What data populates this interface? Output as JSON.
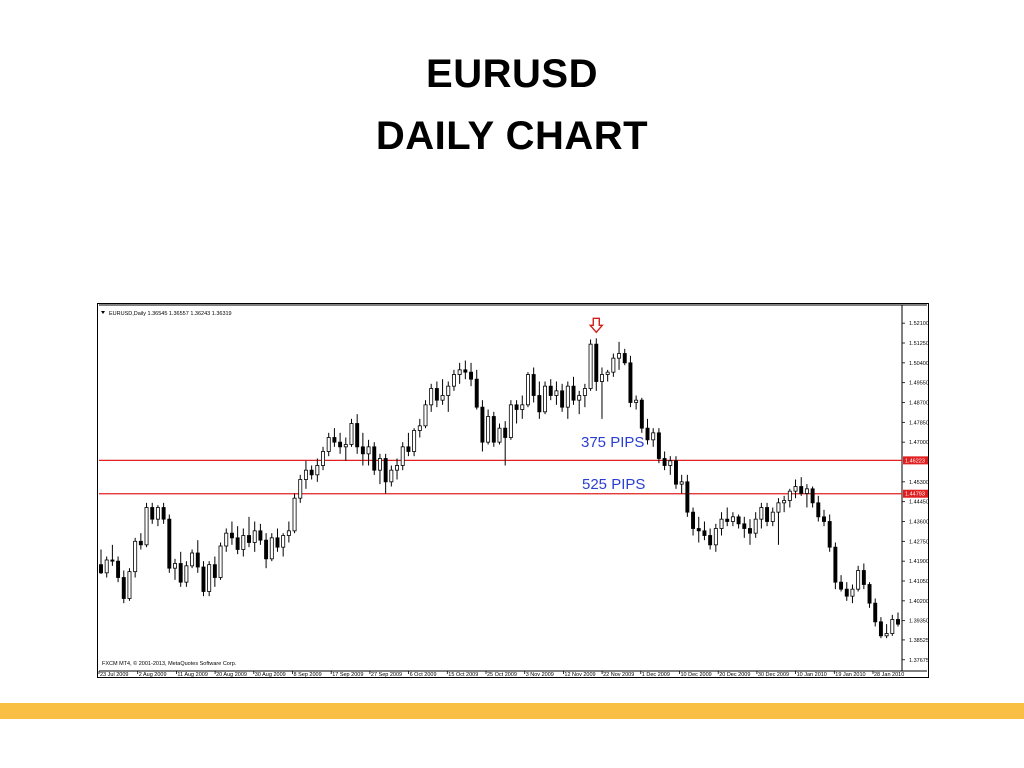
{
  "slide": {
    "title_line1": "EURUSD",
    "title_line2": "DAILY CHART",
    "bar_color": "#f9bf45"
  },
  "chart_data": {
    "type": "candlestick",
    "header": "EURUSD,Daily  1.36545 1.36557 1.36243 1.36319",
    "footer": "FXCM MT4, © 2001-2013, MetaQuotes Software Corp.",
    "y_ticks": [
      1.521,
      1.5125,
      1.504,
      1.4955,
      1.487,
      1.4785,
      1.47,
      1.453,
      1.4445,
      1.436,
      1.4275,
      1.419,
      1.4105,
      1.402,
      1.3935,
      1.38525,
      1.37675
    ],
    "y_tick_labels": [
      "1.52100",
      "1.51250",
      "1.50400",
      "1.49550",
      "1.48700",
      "1.47850",
      "1.47000",
      "1.45300",
      "1.44450",
      "1.43600",
      "1.42750",
      "1.41900",
      "1.41050",
      "1.40200",
      "1.39350",
      "1.38525",
      "1.37675"
    ],
    "ylim": [
      1.3745,
      1.5275
    ],
    "x_labels": [
      "23 Jul 2009",
      "2 Aug 2009",
      "11 Aug 2009",
      "20 Aug 2009",
      "30 Aug 2009",
      "8 Sep 2009",
      "17 Sep 2009",
      "27 Sep 2009",
      "6 Oct 2009",
      "15 Oct 2009",
      "25 Oct 2009",
      "3 Nov 2009",
      "12 Nov 2009",
      "22 Nov 2009",
      "1 Dec 2009",
      "10 Dec 2009",
      "20 Dec 2009",
      "30 Dec 2009",
      "10 Jan 2010",
      "19 Jan 2010",
      "28 Jan 2010"
    ],
    "levels": [
      {
        "value": 1.4622,
        "label": "1.46223",
        "color": "#e02020"
      },
      {
        "value": 1.4479,
        "label": "1.44793",
        "color": "#e02020"
      }
    ],
    "annotations": [
      {
        "text": "375 PIPS",
        "color": "#2a3fd0"
      },
      {
        "text": "525 PIPS",
        "color": "#2a3fd0"
      }
    ],
    "marker": {
      "type": "down-arrow",
      "color": "#d0201b"
    },
    "candles": [
      {
        "o": 1.4175,
        "h": 1.424,
        "l": 1.4135,
        "c": 1.414
      },
      {
        "o": 1.414,
        "h": 1.421,
        "l": 1.412,
        "c": 1.4195
      },
      {
        "o": 1.4195,
        "h": 1.426,
        "l": 1.417,
        "c": 1.419
      },
      {
        "o": 1.419,
        "h": 1.421,
        "l": 1.41,
        "c": 1.412
      },
      {
        "o": 1.412,
        "h": 1.415,
        "l": 1.401,
        "c": 1.403
      },
      {
        "o": 1.403,
        "h": 1.416,
        "l": 1.402,
        "c": 1.4145
      },
      {
        "o": 1.4145,
        "h": 1.429,
        "l": 1.412,
        "c": 1.4275
      },
      {
        "o": 1.4275,
        "h": 1.431,
        "l": 1.424,
        "c": 1.426
      },
      {
        "o": 1.426,
        "h": 1.444,
        "l": 1.425,
        "c": 1.442
      },
      {
        "o": 1.442,
        "h": 1.444,
        "l": 1.435,
        "c": 1.437
      },
      {
        "o": 1.437,
        "h": 1.443,
        "l": 1.434,
        "c": 1.442
      },
      {
        "o": 1.442,
        "h": 1.444,
        "l": 1.435,
        "c": 1.437
      },
      {
        "o": 1.437,
        "h": 1.439,
        "l": 1.414,
        "c": 1.416
      },
      {
        "o": 1.416,
        "h": 1.42,
        "l": 1.411,
        "c": 1.418
      },
      {
        "o": 1.418,
        "h": 1.423,
        "l": 1.408,
        "c": 1.41
      },
      {
        "o": 1.41,
        "h": 1.419,
        "l": 1.408,
        "c": 1.417
      },
      {
        "o": 1.417,
        "h": 1.424,
        "l": 1.416,
        "c": 1.4225
      },
      {
        "o": 1.4225,
        "h": 1.428,
        "l": 1.414,
        "c": 1.4165
      },
      {
        "o": 1.4165,
        "h": 1.419,
        "l": 1.404,
        "c": 1.406
      },
      {
        "o": 1.406,
        "h": 1.419,
        "l": 1.404,
        "c": 1.4175
      },
      {
        "o": 1.4175,
        "h": 1.421,
        "l": 1.408,
        "c": 1.412
      },
      {
        "o": 1.412,
        "h": 1.427,
        "l": 1.411,
        "c": 1.4255
      },
      {
        "o": 1.4255,
        "h": 1.433,
        "l": 1.423,
        "c": 1.431
      },
      {
        "o": 1.431,
        "h": 1.436,
        "l": 1.426,
        "c": 1.429
      },
      {
        "o": 1.429,
        "h": 1.434,
        "l": 1.422,
        "c": 1.424
      },
      {
        "o": 1.424,
        "h": 1.433,
        "l": 1.421,
        "c": 1.43
      },
      {
        "o": 1.43,
        "h": 1.438,
        "l": 1.425,
        "c": 1.427
      },
      {
        "o": 1.427,
        "h": 1.436,
        "l": 1.423,
        "c": 1.432
      },
      {
        "o": 1.432,
        "h": 1.435,
        "l": 1.426,
        "c": 1.428
      },
      {
        "o": 1.428,
        "h": 1.431,
        "l": 1.416,
        "c": 1.42
      },
      {
        "o": 1.42,
        "h": 1.431,
        "l": 1.419,
        "c": 1.429
      },
      {
        "o": 1.429,
        "h": 1.433,
        "l": 1.423,
        "c": 1.425
      },
      {
        "o": 1.425,
        "h": 1.431,
        "l": 1.421,
        "c": 1.43
      },
      {
        "o": 1.43,
        "h": 1.436,
        "l": 1.427,
        "c": 1.432
      },
      {
        "o": 1.432,
        "h": 1.448,
        "l": 1.431,
        "c": 1.446
      },
      {
        "o": 1.446,
        "h": 1.456,
        "l": 1.444,
        "c": 1.454
      },
      {
        "o": 1.454,
        "h": 1.462,
        "l": 1.45,
        "c": 1.458
      },
      {
        "o": 1.458,
        "h": 1.46,
        "l": 1.454,
        "c": 1.456
      },
      {
        "o": 1.456,
        "h": 1.463,
        "l": 1.453,
        "c": 1.46
      },
      {
        "o": 1.46,
        "h": 1.468,
        "l": 1.458,
        "c": 1.466
      },
      {
        "o": 1.466,
        "h": 1.474,
        "l": 1.464,
        "c": 1.472
      },
      {
        "o": 1.472,
        "h": 1.476,
        "l": 1.468,
        "c": 1.47
      },
      {
        "o": 1.47,
        "h": 1.474,
        "l": 1.465,
        "c": 1.468
      },
      {
        "o": 1.468,
        "h": 1.472,
        "l": 1.462,
        "c": 1.469
      },
      {
        "o": 1.469,
        "h": 1.48,
        "l": 1.468,
        "c": 1.478
      },
      {
        "o": 1.478,
        "h": 1.482,
        "l": 1.465,
        "c": 1.468
      },
      {
        "o": 1.468,
        "h": 1.474,
        "l": 1.46,
        "c": 1.465
      },
      {
        "o": 1.465,
        "h": 1.471,
        "l": 1.46,
        "c": 1.468
      },
      {
        "o": 1.468,
        "h": 1.47,
        "l": 1.456,
        "c": 1.458
      },
      {
        "o": 1.458,
        "h": 1.465,
        "l": 1.452,
        "c": 1.463
      },
      {
        "o": 1.463,
        "h": 1.465,
        "l": 1.448,
        "c": 1.453
      },
      {
        "o": 1.453,
        "h": 1.46,
        "l": 1.451,
        "c": 1.458
      },
      {
        "o": 1.458,
        "h": 1.463,
        "l": 1.454,
        "c": 1.46
      },
      {
        "o": 1.46,
        "h": 1.47,
        "l": 1.458,
        "c": 1.468
      },
      {
        "o": 1.468,
        "h": 1.474,
        "l": 1.464,
        "c": 1.466
      },
      {
        "o": 1.466,
        "h": 1.476,
        "l": 1.464,
        "c": 1.475
      },
      {
        "o": 1.475,
        "h": 1.48,
        "l": 1.472,
        "c": 1.477
      },
      {
        "o": 1.477,
        "h": 1.488,
        "l": 1.476,
        "c": 1.486
      },
      {
        "o": 1.486,
        "h": 1.495,
        "l": 1.483,
        "c": 1.493
      },
      {
        "o": 1.493,
        "h": 1.496,
        "l": 1.485,
        "c": 1.488
      },
      {
        "o": 1.488,
        "h": 1.497,
        "l": 1.486,
        "c": 1.49
      },
      {
        "o": 1.49,
        "h": 1.496,
        "l": 1.483,
        "c": 1.494
      },
      {
        "o": 1.494,
        "h": 1.501,
        "l": 1.492,
        "c": 1.499
      },
      {
        "o": 1.499,
        "h": 1.504,
        "l": 1.495,
        "c": 1.501
      },
      {
        "o": 1.501,
        "h": 1.505,
        "l": 1.497,
        "c": 1.5
      },
      {
        "o": 1.5,
        "h": 1.504,
        "l": 1.494,
        "c": 1.497
      },
      {
        "o": 1.497,
        "h": 1.501,
        "l": 1.484,
        "c": 1.485
      },
      {
        "o": 1.485,
        "h": 1.488,
        "l": 1.466,
        "c": 1.47
      },
      {
        "o": 1.47,
        "h": 1.484,
        "l": 1.469,
        "c": 1.481
      },
      {
        "o": 1.481,
        "h": 1.483,
        "l": 1.468,
        "c": 1.47
      },
      {
        "o": 1.47,
        "h": 1.478,
        "l": 1.469,
        "c": 1.476
      },
      {
        "o": 1.476,
        "h": 1.479,
        "l": 1.46,
        "c": 1.472
      },
      {
        "o": 1.472,
        "h": 1.488,
        "l": 1.471,
        "c": 1.486
      },
      {
        "o": 1.486,
        "h": 1.488,
        "l": 1.478,
        "c": 1.484
      },
      {
        "o": 1.484,
        "h": 1.49,
        "l": 1.48,
        "c": 1.486
      },
      {
        "o": 1.486,
        "h": 1.5,
        "l": 1.485,
        "c": 1.499
      },
      {
        "o": 1.499,
        "h": 1.502,
        "l": 1.487,
        "c": 1.49
      },
      {
        "o": 1.49,
        "h": 1.496,
        "l": 1.48,
        "c": 1.483
      },
      {
        "o": 1.483,
        "h": 1.496,
        "l": 1.482,
        "c": 1.494
      },
      {
        "o": 1.494,
        "h": 1.497,
        "l": 1.488,
        "c": 1.49
      },
      {
        "o": 1.49,
        "h": 1.496,
        "l": 1.486,
        "c": 1.492
      },
      {
        "o": 1.492,
        "h": 1.495,
        "l": 1.483,
        "c": 1.485
      },
      {
        "o": 1.485,
        "h": 1.496,
        "l": 1.48,
        "c": 1.494
      },
      {
        "o": 1.494,
        "h": 1.498,
        "l": 1.486,
        "c": 1.488
      },
      {
        "o": 1.488,
        "h": 1.492,
        "l": 1.482,
        "c": 1.49
      },
      {
        "o": 1.49,
        "h": 1.495,
        "l": 1.485,
        "c": 1.493
      },
      {
        "o": 1.493,
        "h": 1.514,
        "l": 1.492,
        "c": 1.512
      },
      {
        "o": 1.512,
        "h": 1.5145,
        "l": 1.492,
        "c": 1.496
      },
      {
        "o": 1.496,
        "h": 1.502,
        "l": 1.48,
        "c": 1.499
      },
      {
        "o": 1.499,
        "h": 1.501,
        "l": 1.496,
        "c": 1.5
      },
      {
        "o": 1.5,
        "h": 1.508,
        "l": 1.498,
        "c": 1.506
      },
      {
        "o": 1.506,
        "h": 1.513,
        "l": 1.501,
        "c": 1.508
      },
      {
        "o": 1.508,
        "h": 1.51,
        "l": 1.503,
        "c": 1.504
      },
      {
        "o": 1.504,
        "h": 1.507,
        "l": 1.485,
        "c": 1.487
      },
      {
        "o": 1.487,
        "h": 1.49,
        "l": 1.484,
        "c": 1.488
      },
      {
        "o": 1.488,
        "h": 1.489,
        "l": 1.474,
        "c": 1.476
      },
      {
        "o": 1.476,
        "h": 1.48,
        "l": 1.469,
        "c": 1.471
      },
      {
        "o": 1.471,
        "h": 1.476,
        "l": 1.468,
        "c": 1.474
      },
      {
        "o": 1.474,
        "h": 1.476,
        "l": 1.461,
        "c": 1.463
      },
      {
        "o": 1.463,
        "h": 1.466,
        "l": 1.458,
        "c": 1.46
      },
      {
        "o": 1.46,
        "h": 1.464,
        "l": 1.456,
        "c": 1.462
      },
      {
        "o": 1.462,
        "h": 1.464,
        "l": 1.45,
        "c": 1.452
      },
      {
        "o": 1.452,
        "h": 1.456,
        "l": 1.448,
        "c": 1.453
      },
      {
        "o": 1.453,
        "h": 1.456,
        "l": 1.438,
        "c": 1.44
      },
      {
        "o": 1.44,
        "h": 1.442,
        "l": 1.43,
        "c": 1.433
      },
      {
        "o": 1.433,
        "h": 1.438,
        "l": 1.427,
        "c": 1.432
      },
      {
        "o": 1.432,
        "h": 1.436,
        "l": 1.428,
        "c": 1.43
      },
      {
        "o": 1.43,
        "h": 1.433,
        "l": 1.424,
        "c": 1.426
      },
      {
        "o": 1.426,
        "h": 1.435,
        "l": 1.423,
        "c": 1.433
      },
      {
        "o": 1.433,
        "h": 1.44,
        "l": 1.43,
        "c": 1.437
      },
      {
        "o": 1.437,
        "h": 1.442,
        "l": 1.434,
        "c": 1.436
      },
      {
        "o": 1.436,
        "h": 1.44,
        "l": 1.434,
        "c": 1.438
      },
      {
        "o": 1.438,
        "h": 1.439,
        "l": 1.433,
        "c": 1.435
      },
      {
        "o": 1.435,
        "h": 1.438,
        "l": 1.429,
        "c": 1.433
      },
      {
        "o": 1.433,
        "h": 1.437,
        "l": 1.426,
        "c": 1.431
      },
      {
        "o": 1.431,
        "h": 1.44,
        "l": 1.429,
        "c": 1.437
      },
      {
        "o": 1.437,
        "h": 1.444,
        "l": 1.433,
        "c": 1.442
      },
      {
        "o": 1.442,
        "h": 1.444,
        "l": 1.434,
        "c": 1.436
      },
      {
        "o": 1.436,
        "h": 1.442,
        "l": 1.434,
        "c": 1.44
      },
      {
        "o": 1.44,
        "h": 1.446,
        "l": 1.426,
        "c": 1.444
      },
      {
        "o": 1.444,
        "h": 1.447,
        "l": 1.44,
        "c": 1.445
      },
      {
        "o": 1.445,
        "h": 1.45,
        "l": 1.442,
        "c": 1.449
      },
      {
        "o": 1.449,
        "h": 1.454,
        "l": 1.446,
        "c": 1.451
      },
      {
        "o": 1.451,
        "h": 1.455,
        "l": 1.447,
        "c": 1.448
      },
      {
        "o": 1.448,
        "h": 1.452,
        "l": 1.442,
        "c": 1.45
      },
      {
        "o": 1.45,
        "h": 1.451,
        "l": 1.442,
        "c": 1.444
      },
      {
        "o": 1.444,
        "h": 1.447,
        "l": 1.436,
        "c": 1.438
      },
      {
        "o": 1.438,
        "h": 1.441,
        "l": 1.434,
        "c": 1.436
      },
      {
        "o": 1.436,
        "h": 1.439,
        "l": 1.423,
        "c": 1.425
      },
      {
        "o": 1.425,
        "h": 1.427,
        "l": 1.407,
        "c": 1.41
      },
      {
        "o": 1.41,
        "h": 1.413,
        "l": 1.406,
        "c": 1.407
      },
      {
        "o": 1.407,
        "h": 1.41,
        "l": 1.402,
        "c": 1.404
      },
      {
        "o": 1.404,
        "h": 1.409,
        "l": 1.401,
        "c": 1.407
      },
      {
        "o": 1.407,
        "h": 1.417,
        "l": 1.406,
        "c": 1.415
      },
      {
        "o": 1.415,
        "h": 1.418,
        "l": 1.407,
        "c": 1.409
      },
      {
        "o": 1.409,
        "h": 1.41,
        "l": 1.399,
        "c": 1.401
      },
      {
        "o": 1.401,
        "h": 1.403,
        "l": 1.391,
        "c": 1.393
      },
      {
        "o": 1.393,
        "h": 1.395,
        "l": 1.386,
        "c": 1.387
      },
      {
        "o": 1.387,
        "h": 1.392,
        "l": 1.386,
        "c": 1.388
      },
      {
        "o": 1.388,
        "h": 1.396,
        "l": 1.387,
        "c": 1.394
      },
      {
        "o": 1.394,
        "h": 1.397,
        "l": 1.391,
        "c": 1.392
      }
    ]
  }
}
